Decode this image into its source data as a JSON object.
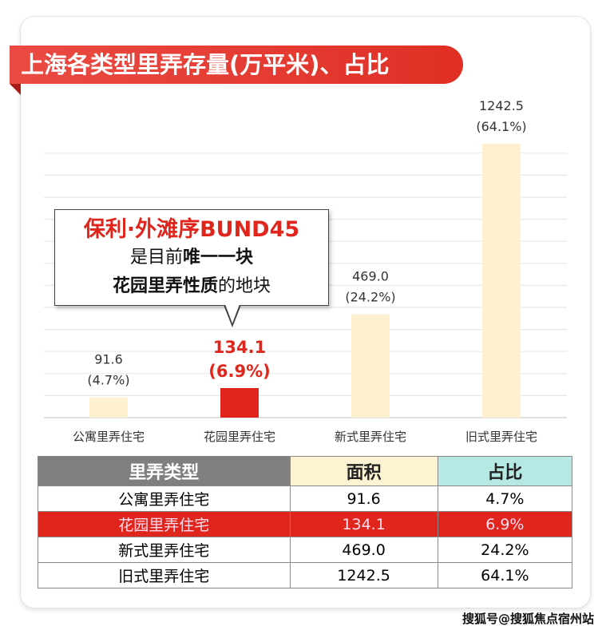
{
  "title": "上海各类型里弄存量(万平米)、占比",
  "callout": {
    "line1": "保利·外滩序BUND45",
    "line2_a": "是目前",
    "line2_b": "唯一一块",
    "line3_a": "花园里弄性质",
    "line3_b": "的地块"
  },
  "chart_data": {
    "type": "bar",
    "categories": [
      "公寓里弄住宅",
      "花园里弄住宅",
      "新式里弄住宅",
      "旧式里弄住宅"
    ],
    "values": [
      91.6,
      134.1,
      469.0,
      1242.5
    ],
    "data_labels": [
      "91.6",
      "134.1",
      "469.0",
      "1242.5"
    ],
    "pct_labels": [
      "(4.7%)",
      "(6.9%)",
      "(24.2%)",
      "(64.1%)"
    ],
    "ylim": [
      0,
      1250
    ],
    "grid": true,
    "colors": [
      "#fdf1cf",
      "#e0261c",
      "#fdf1cf",
      "#fdf1cf"
    ],
    "highlight_index": 1
  },
  "table": {
    "headers": [
      "里弄类型",
      "面积",
      "占比"
    ],
    "rows": [
      [
        "公寓里弄住宅",
        "91.6",
        "4.7%"
      ],
      [
        "花园里弄住宅",
        "134.1",
        "6.9%"
      ],
      [
        "新式里弄住宅",
        "469.0",
        "24.2%"
      ],
      [
        "旧式里弄住宅",
        "1242.5",
        "64.1%"
      ]
    ],
    "highlight_row": 1
  },
  "watermark": "搜狐号@搜狐焦点宿州站"
}
